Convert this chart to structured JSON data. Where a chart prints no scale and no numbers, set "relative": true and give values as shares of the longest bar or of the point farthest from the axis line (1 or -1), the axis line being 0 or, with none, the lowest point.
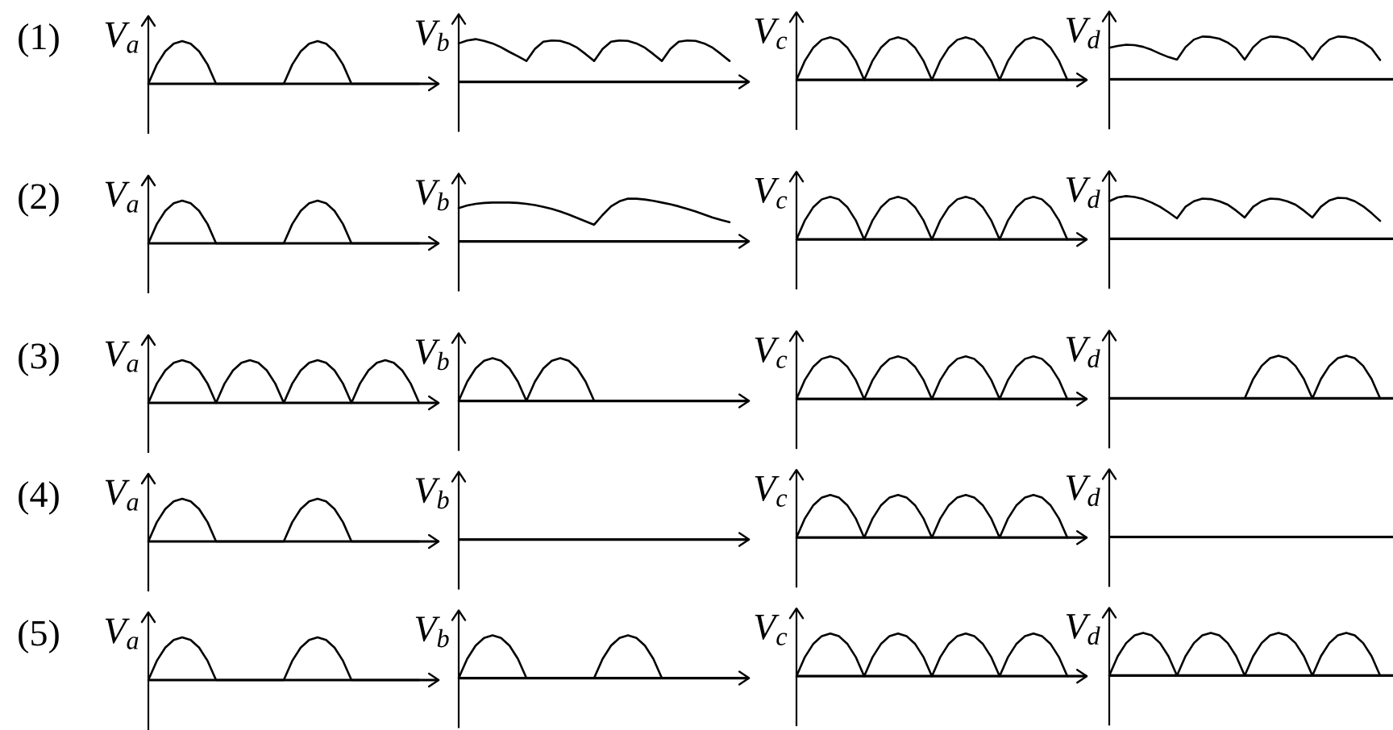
{
  "chart_data": [
    {
      "type": "line",
      "relative": true,
      "color": "#000000",
      "title": "(1)",
      "ylabel": "V$_{a}$",
      "categories": [
        null,
        null,
        null,
        null,
        null,
        null,
        null,
        null,
        null,
        null,
        null,
        null,
        null,
        null,
        null,
        null,
        null,
        null,
        null,
        null,
        null,
        null,
        null,
        null,
        null,
        null,
        null,
        null,
        null,
        null,
        null,
        null,
        null
      ],
      "values": [
        0,
        0.45,
        0.76,
        0.94,
        1,
        0.94,
        0.76,
        0.45,
        0,
        0,
        0,
        0,
        0,
        0,
        0,
        0,
        0,
        0.45,
        0.76,
        0.94,
        1,
        0.94,
        0.76,
        0.45,
        0,
        0,
        0,
        0,
        0,
        0,
        0,
        0,
        0
      ]
    },
    {
      "type": "line",
      "relative": true,
      "color": "#000000",
      "ylabel": "V$_{b}$",
      "categories": [
        null,
        null,
        null,
        null,
        null,
        null,
        null,
        null,
        null,
        null,
        null,
        null,
        null,
        null,
        null,
        null,
        null,
        null,
        null,
        null,
        null,
        null,
        null,
        null,
        null,
        null,
        null,
        null,
        null,
        null,
        null,
        null,
        null
      ],
      "values": [
        0.9,
        0.97,
        1,
        0.96,
        0.9,
        0.81,
        0.7,
        0.6,
        0.49,
        0.77,
        0.94,
        0.97,
        0.96,
        0.9,
        0.8,
        0.65,
        0.49,
        0.77,
        0.94,
        0.97,
        0.96,
        0.9,
        0.8,
        0.65,
        0.49,
        0.77,
        0.94,
        0.97,
        0.96,
        0.9,
        0.8,
        0.65,
        0.49
      ]
    },
    {
      "type": "line",
      "relative": true,
      "color": "#000000",
      "ylabel": "V$_{c}$",
      "categories": [
        null,
        null,
        null,
        null,
        null,
        null,
        null,
        null,
        null,
        null,
        null,
        null,
        null,
        null,
        null,
        null,
        null,
        null,
        null,
        null,
        null,
        null,
        null,
        null,
        null,
        null,
        null,
        null,
        null,
        null,
        null,
        null,
        null
      ],
      "values": [
        0,
        0.45,
        0.76,
        0.94,
        1,
        0.94,
        0.76,
        0.45,
        0,
        0.45,
        0.76,
        0.94,
        1,
        0.94,
        0.76,
        0.45,
        0,
        0.45,
        0.76,
        0.94,
        1,
        0.94,
        0.76,
        0.45,
        0,
        0.45,
        0.76,
        0.94,
        1,
        0.94,
        0.76,
        0.45,
        0
      ]
    },
    {
      "type": "line",
      "relative": true,
      "color": "#000000",
      "ylabel": "V$_{d}$",
      "categories": [
        null,
        null,
        null,
        null,
        null,
        null,
        null,
        null,
        null,
        null,
        null,
        null,
        null,
        null,
        null,
        null,
        null,
        null,
        null,
        null,
        null,
        null,
        null,
        null,
        null,
        null,
        null,
        null,
        null,
        null,
        null,
        null,
        null
      ],
      "values": [
        0.74,
        0.78,
        0.81,
        0.8,
        0.76,
        0.69,
        0.6,
        0.52,
        0.46,
        0.75,
        0.93,
        1,
        0.99,
        0.95,
        0.86,
        0.72,
        0.46,
        0.75,
        0.93,
        1,
        0.99,
        0.95,
        0.86,
        0.72,
        0.46,
        0.75,
        0.93,
        1,
        0.99,
        0.95,
        0.86,
        0.72,
        0.45
      ]
    },
    {
      "type": "line",
      "relative": true,
      "color": "#000000",
      "title": "(2)",
      "ylabel": "V$_{a}$",
      "categories": [
        null,
        null,
        null,
        null,
        null,
        null,
        null,
        null,
        null,
        null,
        null,
        null,
        null,
        null,
        null,
        null,
        null,
        null,
        null,
        null,
        null,
        null,
        null,
        null,
        null,
        null,
        null,
        null,
        null,
        null,
        null,
        null,
        null
      ],
      "values": [
        0,
        0.45,
        0.76,
        0.94,
        1,
        0.94,
        0.76,
        0.45,
        0,
        0,
        0,
        0,
        0,
        0,
        0,
        0,
        0,
        0.45,
        0.76,
        0.94,
        1,
        0.94,
        0.76,
        0.45,
        0,
        0,
        0,
        0,
        0,
        0,
        0,
        0,
        0
      ]
    },
    {
      "type": "line",
      "relative": true,
      "color": "#000000",
      "ylabel": "V$_{b}$",
      "categories": [
        null,
        null,
        null,
        null,
        null,
        null,
        null,
        null,
        null,
        null,
        null,
        null,
        null,
        null,
        null,
        null,
        null,
        null,
        null,
        null,
        null,
        null,
        null,
        null,
        null,
        null,
        null,
        null,
        null,
        null,
        null,
        null,
        null
      ],
      "values": [
        0.78,
        0.84,
        0.88,
        0.9,
        0.91,
        0.91,
        0.91,
        0.9,
        0.88,
        0.85,
        0.81,
        0.76,
        0.7,
        0.63,
        0.55,
        0.47,
        0.39,
        0.62,
        0.82,
        0.94,
        1,
        1,
        0.98,
        0.95,
        0.91,
        0.87,
        0.82,
        0.76,
        0.7,
        0.63,
        0.56,
        0.5,
        0.45
      ]
    },
    {
      "type": "line",
      "relative": true,
      "color": "#000000",
      "ylabel": "V$_{c}$",
      "categories": [
        null,
        null,
        null,
        null,
        null,
        null,
        null,
        null,
        null,
        null,
        null,
        null,
        null,
        null,
        null,
        null,
        null,
        null,
        null,
        null,
        null,
        null,
        null,
        null,
        null,
        null,
        null,
        null,
        null,
        null,
        null,
        null,
        null
      ],
      "values": [
        0,
        0.45,
        0.76,
        0.94,
        1,
        0.94,
        0.76,
        0.45,
        0,
        0.45,
        0.76,
        0.94,
        1,
        0.94,
        0.76,
        0.45,
        0,
        0.45,
        0.76,
        0.94,
        1,
        0.94,
        0.76,
        0.45,
        0,
        0.45,
        0.76,
        0.94,
        1,
        0.94,
        0.76,
        0.45,
        0
      ]
    },
    {
      "type": "line",
      "relative": true,
      "color": "#000000",
      "ylabel": "V$_{d}$",
      "categories": [
        null,
        null,
        null,
        null,
        null,
        null,
        null,
        null,
        null,
        null,
        null,
        null,
        null,
        null,
        null,
        null,
        null,
        null,
        null,
        null,
        null,
        null,
        null,
        null,
        null,
        null,
        null,
        null,
        null,
        null,
        null,
        null,
        null
      ],
      "values": [
        0.88,
        0.97,
        1,
        0.98,
        0.93,
        0.85,
        0.75,
        0.62,
        0.48,
        0.75,
        0.88,
        0.94,
        0.93,
        0.88,
        0.8,
        0.66,
        0.5,
        0.75,
        0.88,
        0.94,
        0.93,
        0.88,
        0.8,
        0.66,
        0.5,
        0.75,
        0.9,
        0.96,
        0.95,
        0.88,
        0.76,
        0.6,
        0.42
      ]
    },
    {
      "type": "line",
      "relative": true,
      "color": "#000000",
      "title": "(3)",
      "ylabel": "V$_{a}$",
      "categories": [
        null,
        null,
        null,
        null,
        null,
        null,
        null,
        null,
        null,
        null,
        null,
        null,
        null,
        null,
        null,
        null,
        null,
        null,
        null,
        null,
        null,
        null,
        null,
        null,
        null,
        null,
        null,
        null,
        null,
        null,
        null,
        null,
        null
      ],
      "values": [
        0,
        0.45,
        0.76,
        0.94,
        1,
        0.94,
        0.76,
        0.45,
        0,
        0.45,
        0.76,
        0.94,
        1,
        0.94,
        0.76,
        0.45,
        0,
        0.45,
        0.76,
        0.94,
        1,
        0.94,
        0.76,
        0.45,
        0,
        0.45,
        0.76,
        0.94,
        1,
        0.94,
        0.76,
        0.45,
        0
      ]
    },
    {
      "type": "line",
      "relative": true,
      "color": "#000000",
      "ylabel": "V$_{b}$",
      "categories": [
        null,
        null,
        null,
        null,
        null,
        null,
        null,
        null,
        null,
        null,
        null,
        null,
        null,
        null,
        null,
        null,
        null,
        null,
        null,
        null,
        null,
        null,
        null,
        null,
        null,
        null,
        null,
        null,
        null,
        null,
        null,
        null,
        null
      ],
      "values": [
        0,
        0.45,
        0.76,
        0.94,
        1,
        0.94,
        0.76,
        0.45,
        0,
        0.45,
        0.76,
        0.94,
        1,
        0.94,
        0.76,
        0.45,
        0,
        0,
        0,
        0,
        0,
        0,
        0,
        0,
        0,
        0,
        0,
        0,
        0,
        0,
        0,
        0,
        0
      ]
    },
    {
      "type": "line",
      "relative": true,
      "color": "#000000",
      "ylabel": "V$_{c}$",
      "categories": [
        null,
        null,
        null,
        null,
        null,
        null,
        null,
        null,
        null,
        null,
        null,
        null,
        null,
        null,
        null,
        null,
        null,
        null,
        null,
        null,
        null,
        null,
        null,
        null,
        null,
        null,
        null,
        null,
        null,
        null,
        null,
        null,
        null
      ],
      "values": [
        0,
        0.45,
        0.76,
        0.94,
        1,
        0.94,
        0.76,
        0.45,
        0,
        0.45,
        0.76,
        0.94,
        1,
        0.94,
        0.76,
        0.45,
        0,
        0.45,
        0.76,
        0.94,
        1,
        0.94,
        0.76,
        0.45,
        0,
        0.45,
        0.76,
        0.94,
        1,
        0.94,
        0.76,
        0.45,
        0
      ]
    },
    {
      "type": "line",
      "relative": true,
      "color": "#000000",
      "ylabel": "V$_{d}$",
      "categories": [
        null,
        null,
        null,
        null,
        null,
        null,
        null,
        null,
        null,
        null,
        null,
        null,
        null,
        null,
        null,
        null,
        null,
        null,
        null,
        null,
        null,
        null,
        null,
        null,
        null,
        null,
        null,
        null,
        null,
        null,
        null,
        null,
        null
      ],
      "values": [
        0,
        0,
        0,
        0,
        0,
        0,
        0,
        0,
        0,
        0,
        0,
        0,
        0,
        0,
        0,
        0,
        0,
        0.45,
        0.76,
        0.94,
        1,
        0.94,
        0.76,
        0.45,
        0,
        0.45,
        0.76,
        0.94,
        1,
        0.94,
        0.76,
        0.45,
        0
      ]
    },
    {
      "type": "line",
      "relative": true,
      "color": "#000000",
      "title": "(4)",
      "ylabel": "V$_{a}$",
      "categories": [
        null,
        null,
        null,
        null,
        null,
        null,
        null,
        null,
        null,
        null,
        null,
        null,
        null,
        null,
        null,
        null,
        null,
        null,
        null,
        null,
        null,
        null,
        null,
        null,
        null,
        null,
        null,
        null,
        null,
        null,
        null,
        null,
        null
      ],
      "values": [
        0,
        0.45,
        0.76,
        0.94,
        1,
        0.94,
        0.76,
        0.45,
        0,
        0,
        0,
        0,
        0,
        0,
        0,
        0,
        0,
        0.45,
        0.76,
        0.94,
        1,
        0.94,
        0.76,
        0.45,
        0,
        0,
        0,
        0,
        0,
        0,
        0,
        0,
        0
      ]
    },
    {
      "type": "other",
      "ylabel": "V$_{b}$"
    },
    {
      "type": "line",
      "relative": true,
      "color": "#000000",
      "ylabel": "V$_{c}$",
      "categories": [
        null,
        null,
        null,
        null,
        null,
        null,
        null,
        null,
        null,
        null,
        null,
        null,
        null,
        null,
        null,
        null,
        null,
        null,
        null,
        null,
        null,
        null,
        null,
        null,
        null,
        null,
        null,
        null,
        null,
        null,
        null,
        null,
        null
      ],
      "values": [
        0,
        0.45,
        0.76,
        0.94,
        1,
        0.94,
        0.76,
        0.45,
        0,
        0.45,
        0.76,
        0.94,
        1,
        0.94,
        0.76,
        0.45,
        0,
        0.45,
        0.76,
        0.94,
        1,
        0.94,
        0.76,
        0.45,
        0,
        0.45,
        0.76,
        0.94,
        1,
        0.94,
        0.76,
        0.45,
        0
      ]
    },
    {
      "type": "other",
      "ylabel": "V$_{d}$"
    },
    {
      "type": "line",
      "relative": true,
      "color": "#000000",
      "title": "(5)",
      "ylabel": "V$_{a}$",
      "categories": [
        null,
        null,
        null,
        null,
        null,
        null,
        null,
        null,
        null,
        null,
        null,
        null,
        null,
        null,
        null,
        null,
        null,
        null,
        null,
        null,
        null,
        null,
        null,
        null,
        null,
        null,
        null,
        null,
        null,
        null,
        null,
        null,
        null
      ],
      "values": [
        0,
        0.45,
        0.76,
        0.94,
        1,
        0.94,
        0.76,
        0.45,
        0,
        0,
        0,
        0,
        0,
        0,
        0,
        0,
        0,
        0.45,
        0.76,
        0.94,
        1,
        0.94,
        0.76,
        0.45,
        0,
        0,
        0,
        0,
        0,
        0,
        0,
        0,
        0
      ]
    },
    {
      "type": "line",
      "relative": true,
      "color": "#000000",
      "ylabel": "V$_{b}$",
      "categories": [
        null,
        null,
        null,
        null,
        null,
        null,
        null,
        null,
        null,
        null,
        null,
        null,
        null,
        null,
        null,
        null,
        null,
        null,
        null,
        null,
        null,
        null,
        null,
        null,
        null,
        null,
        null,
        null,
        null,
        null,
        null,
        null,
        null
      ],
      "values": [
        0,
        0.45,
        0.76,
        0.94,
        1,
        0.94,
        0.76,
        0.45,
        0,
        0,
        0,
        0,
        0,
        0,
        0,
        0,
        0,
        0.45,
        0.76,
        0.94,
        1,
        0.94,
        0.76,
        0.45,
        0,
        0,
        0,
        0,
        0,
        0,
        0,
        0,
        0
      ]
    },
    {
      "type": "line",
      "relative": true,
      "color": "#000000",
      "ylabel": "V$_{c}$",
      "categories": [
        null,
        null,
        null,
        null,
        null,
        null,
        null,
        null,
        null,
        null,
        null,
        null,
        null,
        null,
        null,
        null,
        null,
        null,
        null,
        null,
        null,
        null,
        null,
        null,
        null,
        null,
        null,
        null,
        null,
        null,
        null,
        null,
        null
      ],
      "values": [
        0,
        0.45,
        0.76,
        0.94,
        1,
        0.94,
        0.76,
        0.45,
        0,
        0.45,
        0.76,
        0.94,
        1,
        0.94,
        0.76,
        0.45,
        0,
        0.45,
        0.76,
        0.94,
        1,
        0.94,
        0.76,
        0.45,
        0,
        0.45,
        0.76,
        0.94,
        1,
        0.94,
        0.76,
        0.45,
        0
      ]
    },
    {
      "type": "line",
      "relative": true,
      "color": "#000000",
      "ylabel": "V$_{d}$",
      "categories": [
        null,
        null,
        null,
        null,
        null,
        null,
        null,
        null,
        null,
        null,
        null,
        null,
        null,
        null,
        null,
        null,
        null,
        null,
        null,
        null,
        null,
        null,
        null,
        null,
        null,
        null,
        null,
        null,
        null,
        null,
        null,
        null,
        null
      ],
      "values": [
        0,
        0.45,
        0.76,
        0.94,
        1,
        0.94,
        0.76,
        0.45,
        0,
        0.45,
        0.76,
        0.94,
        1,
        0.94,
        0.76,
        0.45,
        0,
        0.45,
        0.76,
        0.94,
        1,
        0.94,
        0.76,
        0.45,
        0,
        0.45,
        0.76,
        0.94,
        1,
        0.94,
        0.76,
        0.45,
        0
      ]
    }
  ]
}
